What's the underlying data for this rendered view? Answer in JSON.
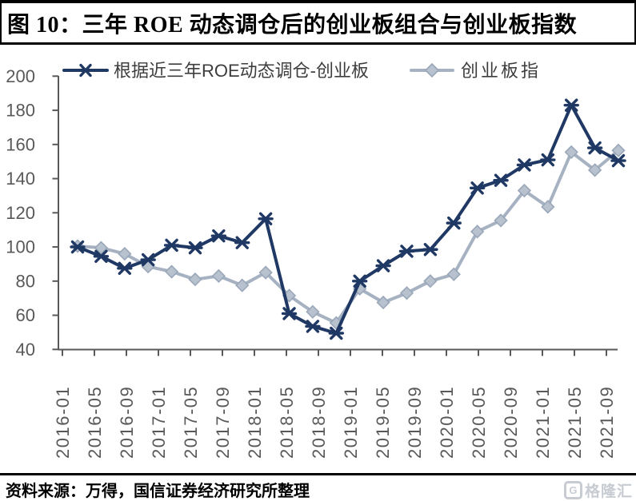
{
  "header": {
    "title": "图 10：三年 ROE 动态调仓后的创业板组合与创业板指数"
  },
  "footer": {
    "source": "资料来源：万得，国信证券经济研究所整理",
    "logo_letter": "G",
    "logo_text": "格隆汇",
    "logo_color": "#c7ccd3"
  },
  "chart_data": {
    "type": "line",
    "title": "",
    "xlabel": "",
    "ylabel": "",
    "ylim": [
      40,
      200
    ],
    "yticks": [
      40,
      60,
      80,
      100,
      120,
      140,
      160,
      180,
      200
    ],
    "grid": false,
    "legend_position": "top",
    "axis_color": "#595959",
    "tick_label_color": "#595959",
    "legend_text_color": "#3d3d3d",
    "x_tick_labels": [
      "2016-01",
      "2016-05",
      "2016-09",
      "2017-01",
      "2017-05",
      "2017-09",
      "2018-01",
      "2018-05",
      "2018-09",
      "2019-01",
      "2019-05",
      "2019-09",
      "2020-01",
      "2020-05",
      "2020-09",
      "2021-01",
      "2021-05",
      "2021-09"
    ],
    "x": [
      "2016-01",
      "2016-04",
      "2016-07",
      "2016-10",
      "2017-01",
      "2017-04",
      "2017-07",
      "2017-10",
      "2018-01",
      "2018-04",
      "2018-07",
      "2018-10",
      "2019-01",
      "2019-04",
      "2019-07",
      "2019-10",
      "2020-01",
      "2020-04",
      "2020-07",
      "2020-10",
      "2021-01",
      "2021-04",
      "2021-07",
      "2021-10"
    ],
    "series": [
      {
        "name": "根据近三年ROE动态调仓-创业板",
        "marker": "x-star",
        "color": "#1f3864",
        "values": [
          100,
          94.5,
          87.5,
          92.5,
          101,
          99.5,
          106.5,
          102.5,
          116.5,
          61,
          53.5,
          49.5,
          80,
          89,
          97.5,
          98.5,
          114,
          134.5,
          139,
          148,
          151,
          183,
          158,
          150.5
        ]
      },
      {
        "name": "创业板指",
        "marker": "diamond",
        "color": "#a6b2c2",
        "marker_fill": "#b8c1ce",
        "marker_stroke": "#9aa7b9",
        "values": [
          100.5,
          99.5,
          96,
          88.5,
          85.5,
          81,
          83,
          77.5,
          85,
          71.5,
          62,
          55.5,
          75.5,
          67.5,
          73,
          80,
          84,
          109,
          115.5,
          133,
          123.5,
          155.5,
          145,
          156.5
        ]
      }
    ]
  }
}
